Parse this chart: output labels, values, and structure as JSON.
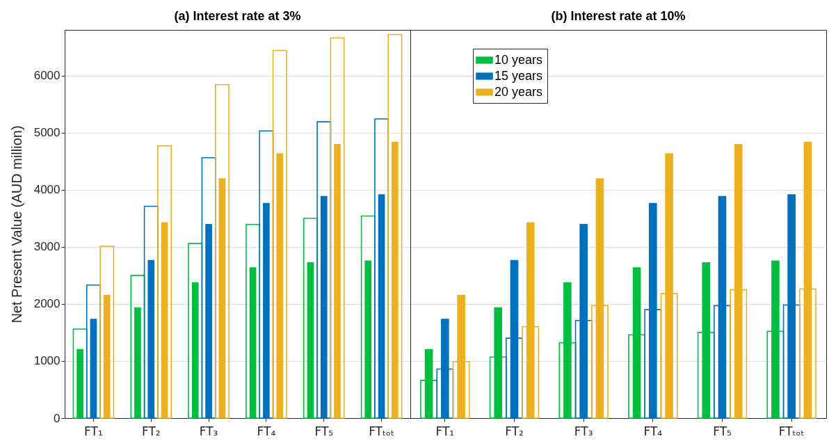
{
  "chart_data": [
    {
      "type": "bar",
      "title": "(a) Interest rate at 3%",
      "ylabel": "Net Present Value (AUD million)",
      "categories": [
        "FT₁",
        "FT₂",
        "FT₃",
        "FT₄",
        "FT₅",
        "FTₜₒₜ"
      ],
      "ylim": [
        0,
        6800
      ],
      "yticks": [
        0,
        1000,
        2000,
        3000,
        4000,
        5000,
        6000
      ],
      "grid": "y",
      "series": [
        {
          "color": "#00bf40",
          "values": [
            1560,
            2500,
            3060,
            3390,
            3500,
            3540
          ]
        },
        {
          "color": "#0072bd",
          "values": [
            2330,
            3710,
            4560,
            5030,
            5190,
            5240
          ]
        },
        {
          "color": "#edb120",
          "values": [
            3010,
            4770,
            5840,
            6440,
            6660,
            6720
          ]
        },
        {
          "color": "#00bf40",
          "values": [
            1210,
            1940,
            2380,
            2640,
            2730,
            2760
          ]
        },
        {
          "color": "#0072bd",
          "values": [
            1740,
            2770,
            3400,
            3770,
            3890,
            3920
          ]
        },
        {
          "color": "#edb120",
          "values": [
            2160,
            3430,
            4200,
            4640,
            4800,
            4840
          ]
        }
      ]
    },
    {
      "type": "bar",
      "title": "(b) Interest rate at 10%",
      "categories": [
        "FT₁",
        "FT₂",
        "FT₃",
        "FT₄",
        "FT₅",
        "FTₜₒₜ"
      ],
      "ylim": [
        0,
        6800
      ],
      "yticks": [
        0,
        1000,
        2000,
        3000,
        4000,
        5000,
        6000
      ],
      "grid": "y",
      "tick_labels": "x",
      "legend": "top left",
      "series": [
        {
          "color": "#00bf40",
          "values": [
            660,
            1070,
            1320,
            1460,
            1500,
            1520
          ]
        },
        {
          "color": "#0072bd",
          "values": [
            860,
            1400,
            1710,
            1900,
            1970,
            1980
          ]
        },
        {
          "color": "#edb120",
          "values": [
            990,
            1600,
            1970,
            2180,
            2250,
            2260
          ]
        },
        {
          "name": "10 years",
          "color": "#00bf40",
          "values": [
            1210,
            1940,
            2380,
            2640,
            2730,
            2760
          ]
        },
        {
          "name": "15 years",
          "color": "#0072bd",
          "values": [
            1740,
            2770,
            3400,
            3770,
            3890,
            3920
          ]
        },
        {
          "name": "20 years",
          "color": "#edb120",
          "values": [
            2160,
            3430,
            4200,
            4640,
            4800,
            4840
          ]
        }
      ]
    }
  ]
}
